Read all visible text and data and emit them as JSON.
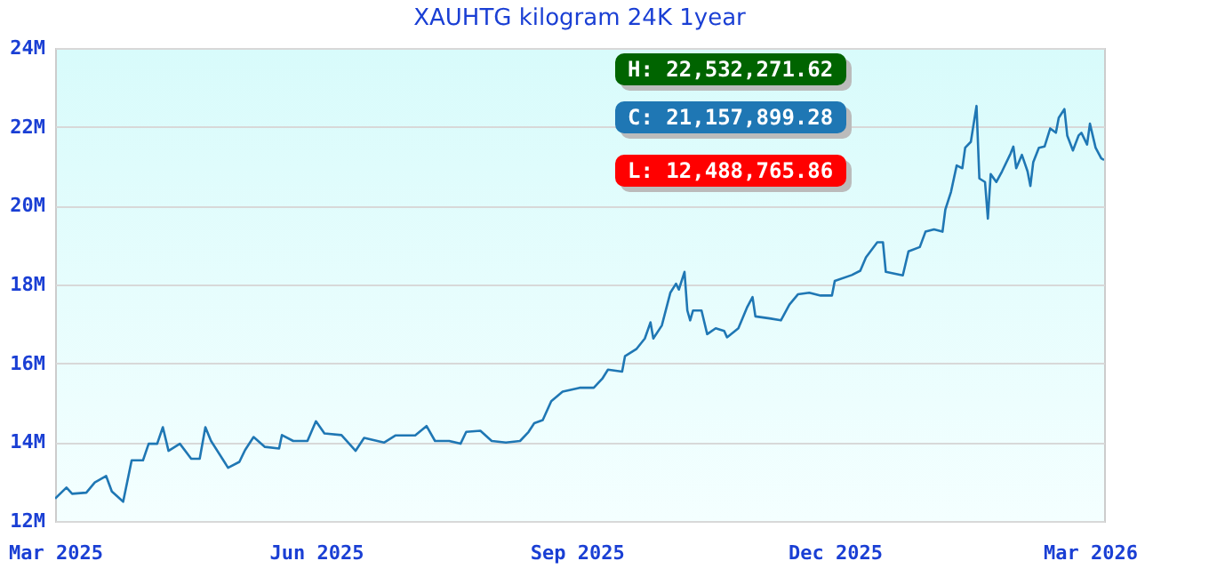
{
  "chart_data": {
    "type": "line",
    "title": "XAUHTG kilogram 24K 1year",
    "x": [
      "2025-03-01",
      "2025-03-05",
      "2025-03-07",
      "2025-03-12",
      "2025-03-15",
      "2025-03-19",
      "2025-03-21",
      "2025-03-25",
      "2025-03-28",
      "2025-04-01",
      "2025-04-03",
      "2025-04-06",
      "2025-04-08",
      "2025-04-10",
      "2025-04-14",
      "2025-04-18",
      "2025-04-21",
      "2025-04-23",
      "2025-04-25",
      "2025-04-29",
      "2025-05-01",
      "2025-05-05",
      "2025-05-07",
      "2025-05-10",
      "2025-05-14",
      "2025-05-19",
      "2025-05-20",
      "2025-05-24",
      "2025-05-29",
      "2025-06-01",
      "2025-06-04",
      "2025-06-10",
      "2025-06-15",
      "2025-06-18",
      "2025-06-25",
      "2025-06-29",
      "2025-07-06",
      "2025-07-10",
      "2025-07-13",
      "2025-07-18",
      "2025-07-22",
      "2025-07-24",
      "2025-07-29",
      "2025-08-02",
      "2025-08-07",
      "2025-08-12",
      "2025-08-15",
      "2025-08-17",
      "2025-08-20",
      "2025-08-23",
      "2025-08-27",
      "2025-09-02",
      "2025-09-07",
      "2025-09-10",
      "2025-09-12",
      "2025-09-17",
      "2025-09-18",
      "2025-09-22",
      "2025-09-25",
      "2025-09-27",
      "2025-09-28",
      "2025-10-01",
      "2025-10-04",
      "2025-10-06",
      "2025-10-07",
      "2025-10-09",
      "2025-10-10",
      "2025-10-11",
      "2025-10-12",
      "2025-10-15",
      "2025-10-17",
      "2025-10-20",
      "2025-10-23",
      "2025-10-24",
      "2025-10-28",
      "2025-10-31",
      "2025-11-02",
      "2025-11-03",
      "2025-11-08",
      "2025-11-12",
      "2025-11-15",
      "2025-11-18",
      "2025-11-22",
      "2025-11-26",
      "2025-11-30",
      "2025-12-01",
      "2025-12-07",
      "2025-12-10",
      "2025-12-12",
      "2025-12-16",
      "2025-12-18",
      "2025-12-19",
      "2025-12-25",
      "2025-12-27",
      "2025-12-31",
      "2026-01-02",
      "2026-01-05",
      "2026-01-08",
      "2026-01-09",
      "2026-01-11",
      "2026-01-13",
      "2026-01-15",
      "2026-01-16",
      "2026-01-18",
      "2026-01-19",
      "2026-01-20",
      "2026-01-21",
      "2026-01-23",
      "2026-01-24",
      "2026-01-25",
      "2026-01-27",
      "2026-01-29",
      "2026-02-01",
      "2026-02-02",
      "2026-02-03",
      "2026-02-05",
      "2026-02-07",
      "2026-02-08",
      "2026-02-09",
      "2026-02-11",
      "2026-02-13",
      "2026-02-15",
      "2026-02-17",
      "2026-02-18",
      "2026-02-20",
      "2026-02-21",
      "2026-02-23",
      "2026-02-25",
      "2026-02-26",
      "2026-02-28",
      "2026-03-01",
      "2026-03-03",
      "2026-03-05",
      "2026-03-06"
    ],
    "series": [
      {
        "color": "#1f77b4",
        "values": [
          12570000,
          12850000,
          12690000,
          12720000,
          12980000,
          13140000,
          12750000,
          12490000,
          13540000,
          13540000,
          13960000,
          13960000,
          14380000,
          13780000,
          13960000,
          13580000,
          13580000,
          14380000,
          14030000,
          13580000,
          13350000,
          13500000,
          13800000,
          14130000,
          13880000,
          13840000,
          14180000,
          14030000,
          14030000,
          14530000,
          14220000,
          14180000,
          13780000,
          14110000,
          13990000,
          14170000,
          14170000,
          14410000,
          14030000,
          14030000,
          13960000,
          14260000,
          14290000,
          14030000,
          13990000,
          14030000,
          14260000,
          14480000,
          14560000,
          15040000,
          15280000,
          15380000,
          15380000,
          15610000,
          15840000,
          15790000,
          16180000,
          16360000,
          16630000,
          17040000,
          16630000,
          16960000,
          17790000,
          18020000,
          17870000,
          18320000,
          17340000,
          17090000,
          17340000,
          17340000,
          16740000,
          16890000,
          16820000,
          16660000,
          16890000,
          17410000,
          17680000,
          17190000,
          17140000,
          17090000,
          17490000,
          17750000,
          17790000,
          17720000,
          17720000,
          18090000,
          18240000,
          18350000,
          18690000,
          19070000,
          19070000,
          18320000,
          18230000,
          18840000,
          18950000,
          19340000,
          19400000,
          19340000,
          19900000,
          20350000,
          21020000,
          20950000,
          21470000,
          21620000,
          22080000,
          22530000,
          20690000,
          20600000,
          19670000,
          20800000,
          20600000,
          20870000,
          21320000,
          21500000,
          20950000,
          21290000,
          20870000,
          20500000,
          21100000,
          21470000,
          21500000,
          21960000,
          21850000,
          22230000,
          22450000,
          21780000,
          21400000,
          21780000,
          21850000,
          21550000,
          22080000,
          21470000,
          21200000,
          21160000
        ]
      }
    ],
    "xlim": [
      "2025-03-01",
      "2026-03-06"
    ],
    "xticks": [
      {
        "value": "2025-03-01",
        "label": "Mar 2025"
      },
      {
        "value": "2025-06-01",
        "label": "Jun 2025"
      },
      {
        "value": "2025-09-01",
        "label": "Sep 2025"
      },
      {
        "value": "2025-12-01",
        "label": "Dec 2025"
      },
      {
        "value": "2026-03-01",
        "label": "Mar 2026"
      }
    ],
    "ylim": [
      12000000,
      24000000
    ],
    "yticks": [
      {
        "value": 12000000,
        "label": "12M"
      },
      {
        "value": 14000000,
        "label": "14M"
      },
      {
        "value": 16000000,
        "label": "16M"
      },
      {
        "value": 18000000,
        "label": "18M"
      },
      {
        "value": 20000000,
        "label": "20M"
      },
      {
        "value": 22000000,
        "label": "22M"
      },
      {
        "value": 24000000,
        "label": "24M"
      }
    ],
    "grid": "y",
    "annotations": [
      "H: 22,532,271.62",
      "C: 21,157,899.28",
      "L: 12,488,765.86"
    ]
  }
}
